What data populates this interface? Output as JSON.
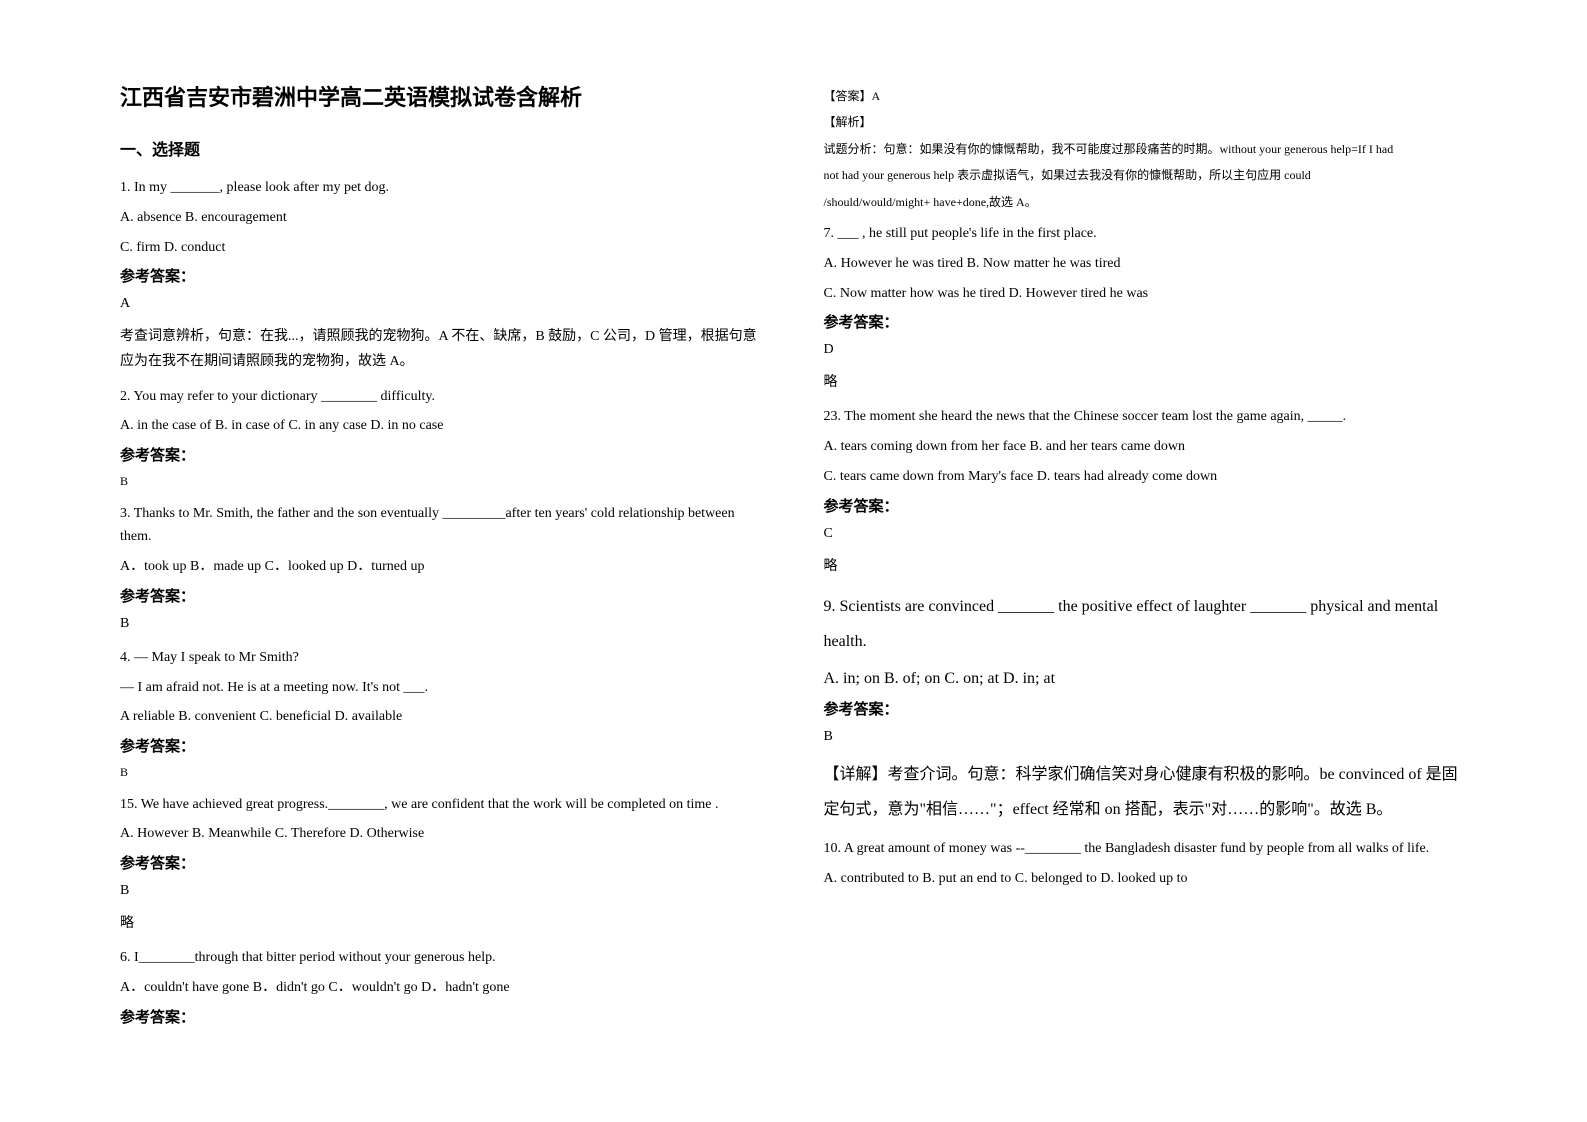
{
  "title": "江西省吉安市碧洲中学高二英语模拟试卷含解析",
  "section1": "一、选择题",
  "q1": {
    "stem": "1. In my _______, please look after my pet dog.",
    "opts1": "A. absence    B. encouragement",
    "opts2": "C. firm    D. conduct",
    "ref": "参考答案：",
    "ans": "A",
    "exp": "考查词意辨析，句意：在我...，请照顾我的宠物狗。A 不在、缺席，B 鼓励，C 公司，D 管理，根据句意应为在我不在期间请照顾我的宠物狗，故选 A。"
  },
  "q2": {
    "stem": "2. You may refer to your dictionary ________ difficulty.",
    "opts": "  A. in the case of    B. in case of        C. in any case      D. in no case",
    "ref": "参考答案：",
    "ans": "B"
  },
  "q3": {
    "stem": "3. Thanks to Mr. Smith, the father and the son eventually _________after ten years' cold relationship between them.",
    "opts": "A．took up        B．made up        C．looked up        D．turned up",
    "ref": "参考答案：",
    "ans": "B"
  },
  "q4": {
    "stem1": "4. — May I speak to Mr Smith?",
    "stem2": "  — I am afraid not. He is at a meeting now. It's not ___.",
    "opts": "A reliable     B. convenient    C. beneficial    D. available",
    "ref": "参考答案：",
    "ans": "B"
  },
  "q5": {
    "stem": "15. We have achieved great progress.________, we are confident that the work will be completed on time .",
    "opts": "    A. However         B. Meanwhile        C. Therefore        D. Otherwise",
    "ref": "参考答案：",
    "ans": "B",
    "exp": "略"
  },
  "q6": {
    "stem": "6. I________through that bitter period without your generous help.",
    "opts": "  A．couldn't have gone  B．didn't go  C．wouldn't go  D．hadn't gone",
    "ref": "参考答案："
  },
  "q6r": {
    "ans_label": "【答案】",
    "ans": "A",
    "exp_label": "【解析】",
    "exp1": "试题分析：句意：如果没有你的慷慨帮助，我不可能度过那段痛苦的时期。without your generous help=If I had",
    "exp2": "not had your generous help 表示虚拟语气，如果过去我没有你的慷慨帮助，所以主句应用 could",
    "exp3": "/should/would/might+ have+done,故选 A。"
  },
  "q7": {
    "stem": "7. ___ , he still put people's life in the first place.",
    "opts1": "    A. However he was tired                   B. Now matter he was tired",
    "opts2": "    C. Now matter how was he tired          D. However tired he was",
    "ref": "参考答案：",
    "ans": "D",
    "exp": "略"
  },
  "q8": {
    "stem": "23. The moment she heard the news that the Chinese soccer team lost the game again, _____.",
    "opts1": "    A. tears coming down from her face                    B. and her tears came down",
    "opts2": "    C. tears came down from Mary's face                  D. tears had already come down",
    "ref": "参考答案：",
    "ans": "C",
    "exp": "略"
  },
  "q9": {
    "stem": "9. Scientists are convinced _______ the positive effect of laughter _______ physical and mental health.",
    "opts": "A. in; on        B. of; on       C. on; at       D. in; at",
    "ref": "参考答案：",
    "ans": "B",
    "exp": "【详解】考查介词。句意：科学家们确信笑对身心健康有积极的影响。be convinced of 是固定句式，意为\"相信……\"；effect 经常和 on 搭配，表示\"对……的影响\"。故选 B。"
  },
  "q10": {
    "stem": "10. A great amount of money was --________ the Bangladesh disaster fund by people from all walks of life.",
    "opts": "    A. contributed to    B. put an end to     C. belonged to      D. looked up to"
  }
}
